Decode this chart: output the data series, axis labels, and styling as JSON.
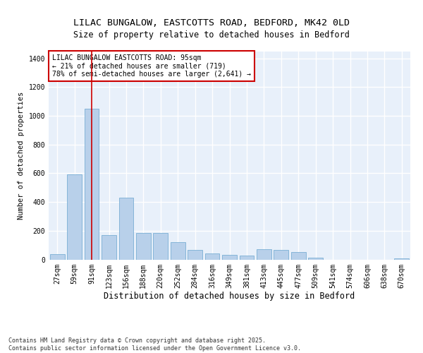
{
  "title_line1": "LILAC BUNGALOW, EASTCOTTS ROAD, BEDFORD, MK42 0LD",
  "title_line2": "Size of property relative to detached houses in Bedford",
  "xlabel": "Distribution of detached houses by size in Bedford",
  "ylabel": "Number of detached properties",
  "categories": [
    "27sqm",
    "59sqm",
    "91sqm",
    "123sqm",
    "156sqm",
    "188sqm",
    "220sqm",
    "252sqm",
    "284sqm",
    "316sqm",
    "349sqm",
    "381sqm",
    "413sqm",
    "445sqm",
    "477sqm",
    "509sqm",
    "541sqm",
    "574sqm",
    "606sqm",
    "638sqm",
    "670sqm"
  ],
  "values": [
    35,
    590,
    1050,
    170,
    430,
    185,
    185,
    120,
    65,
    40,
    30,
    25,
    70,
    65,
    50,
    10,
    0,
    0,
    0,
    0,
    8
  ],
  "bar_color": "#b8d0ea",
  "bar_edge_color": "#7aaed4",
  "background_color": "#e8f0fa",
  "grid_color": "#ffffff",
  "vline_x": 2,
  "vline_color": "#cc0000",
  "annotation_box_text": "LILAC BUNGALOW EASTCOTTS ROAD: 95sqm\n← 21% of detached houses are smaller (719)\n78% of semi-detached houses are larger (2,641) →",
  "annotation_box_color": "#cc0000",
  "annotation_box_facecolor": "#ffffff",
  "footer_text": "Contains HM Land Registry data © Crown copyright and database right 2025.\nContains public sector information licensed under the Open Government Licence v3.0.",
  "ylim": [
    0,
    1450
  ],
  "yticks": [
    0,
    200,
    400,
    600,
    800,
    1000,
    1200,
    1400
  ],
  "title_fontsize": 9.5,
  "subtitle_fontsize": 8.5,
  "xlabel_fontsize": 8.5,
  "ylabel_fontsize": 7.5,
  "tick_fontsize": 7,
  "annotation_fontsize": 7,
  "footer_fontsize": 6
}
